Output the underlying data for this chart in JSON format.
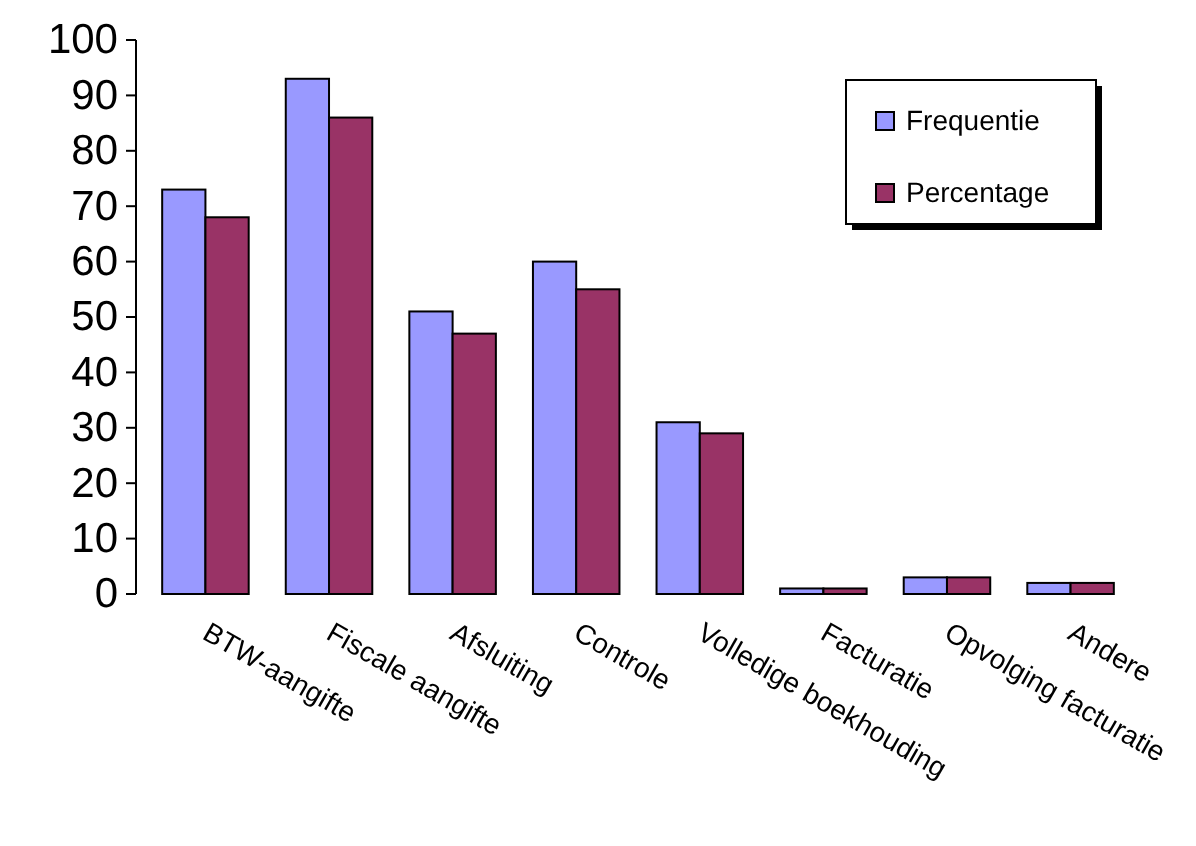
{
  "chart_data": {
    "type": "bar",
    "categories": [
      "BTW-aangifte",
      "Fiscale aangifte",
      "Afsluiting",
      "Controle",
      "Volledige boekhouding",
      "Facturatie",
      "Opvolging facturatie",
      "Andere"
    ],
    "series": [
      {
        "name": "Frequentie",
        "color": "#9999ff",
        "values": [
          73,
          93,
          51,
          60,
          31,
          1,
          3,
          2
        ]
      },
      {
        "name": "Percentage",
        "color": "#993366",
        "values": [
          68,
          86,
          47,
          55,
          29,
          1,
          3,
          2
        ]
      }
    ],
    "ylim": [
      0,
      100
    ],
    "yticks": [
      0,
      10,
      20,
      30,
      40,
      50,
      60,
      70,
      80,
      90,
      100
    ],
    "grid": false,
    "legend": "top right"
  }
}
